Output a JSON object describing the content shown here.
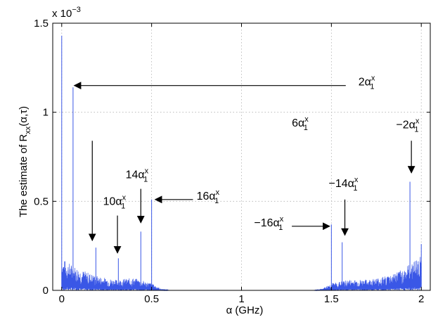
{
  "chart_data": {
    "type": "line",
    "xlabel": "α (GHz)",
    "ylabel": "The estimate of R",
    "ylabel_sub": "xx",
    "ylabel_tail": "(α,τ)",
    "y_multiplier": "x 10",
    "y_multiplier_exp": "−3",
    "xlim": [
      -0.05,
      2.05
    ],
    "ylim": [
      0,
      1.5
    ],
    "x_ticks": [
      "0",
      "0.5",
      "1",
      "1.5",
      "2"
    ],
    "x_tick_values": [
      0,
      0.5,
      1,
      1.5,
      2
    ],
    "y_ticks": [
      "0",
      "0.5",
      "1",
      "1.5"
    ],
    "y_tick_values": [
      0,
      0.5,
      1,
      1.5
    ],
    "grid": true,
    "series_color": "#3a57e6",
    "noise_envelope": [
      {
        "x": 0.0,
        "y": 0.18
      },
      {
        "x": 0.1,
        "y": 0.12
      },
      {
        "x": 0.2,
        "y": 0.08
      },
      {
        "x": 0.3,
        "y": 0.06
      },
      {
        "x": 0.4,
        "y": 0.07
      },
      {
        "x": 0.5,
        "y": 0.04
      },
      {
        "x": 0.55,
        "y": 0.01
      },
      {
        "x": 0.6,
        "y": 0.0
      },
      {
        "x": 1.4,
        "y": 0.0
      },
      {
        "x": 1.45,
        "y": 0.01
      },
      {
        "x": 1.5,
        "y": 0.04
      },
      {
        "x": 1.6,
        "y": 0.06
      },
      {
        "x": 1.7,
        "y": 0.06
      },
      {
        "x": 1.8,
        "y": 0.08
      },
      {
        "x": 1.9,
        "y": 0.12
      },
      {
        "x": 2.0,
        "y": 0.2
      }
    ],
    "peaks": [
      {
        "x": 0.0,
        "y": 1.43
      },
      {
        "x": 0.063,
        "y": 1.14
      },
      {
        "x": 0.19,
        "y": 0.24
      },
      {
        "x": 0.315,
        "y": 0.18
      },
      {
        "x": 0.44,
        "y": 0.33
      },
      {
        "x": 0.5,
        "y": 0.51
      },
      {
        "x": 1.5,
        "y": 0.37
      },
      {
        "x": 1.56,
        "y": 0.27
      },
      {
        "x": 1.937,
        "y": 0.61
      },
      {
        "x": 2.0,
        "y": 0.26
      }
    ],
    "annotations": [
      {
        "label": "2α",
        "sup": "x",
        "sub": "1",
        "text": [
          1.65,
          1.15
        ],
        "arrow_from": [
          1.58,
          1.15
        ],
        "arrow_to": [
          0.07,
          1.15
        ]
      },
      {
        "label": "6α",
        "sup": "x",
        "sub": "1",
        "text": [
          1.28,
          0.92
        ],
        "arrow_from": [
          0.17,
          0.84
        ],
        "arrow_to": [
          0.17,
          0.28
        ]
      },
      {
        "label": "10α",
        "sup": "x",
        "sub": "1",
        "text": [
          0.23,
          0.48
        ],
        "arrow_from": [
          0.31,
          0.42
        ],
        "arrow_to": [
          0.31,
          0.21
        ]
      },
      {
        "label": "14α",
        "sup": "x",
        "sub": "1",
        "text": [
          0.355,
          0.63
        ],
        "arrow_from": [
          0.44,
          0.57
        ],
        "arrow_to": [
          0.44,
          0.38
        ]
      },
      {
        "label": "16α",
        "sup": "x",
        "sub": "1",
        "text": [
          0.75,
          0.51
        ],
        "arrow_from": [
          0.73,
          0.51
        ],
        "arrow_to": [
          0.52,
          0.51
        ]
      },
      {
        "label": "−16α",
        "sup": "x",
        "sub": "1",
        "text": [
          1.07,
          0.36
        ],
        "arrow_from": [
          1.28,
          0.36
        ],
        "arrow_to": [
          1.49,
          0.36
        ]
      },
      {
        "label": "−14α",
        "sup": "x",
        "sub": "1",
        "text": [
          1.485,
          0.58
        ],
        "arrow_from": [
          1.575,
          0.51
        ],
        "arrow_to": [
          1.575,
          0.31
        ]
      },
      {
        "label": "−2α",
        "sup": "x",
        "sub": "1",
        "text": [
          1.86,
          0.91
        ],
        "arrow_from": [
          1.945,
          0.84
        ],
        "arrow_to": [
          1.945,
          0.66
        ]
      }
    ]
  }
}
